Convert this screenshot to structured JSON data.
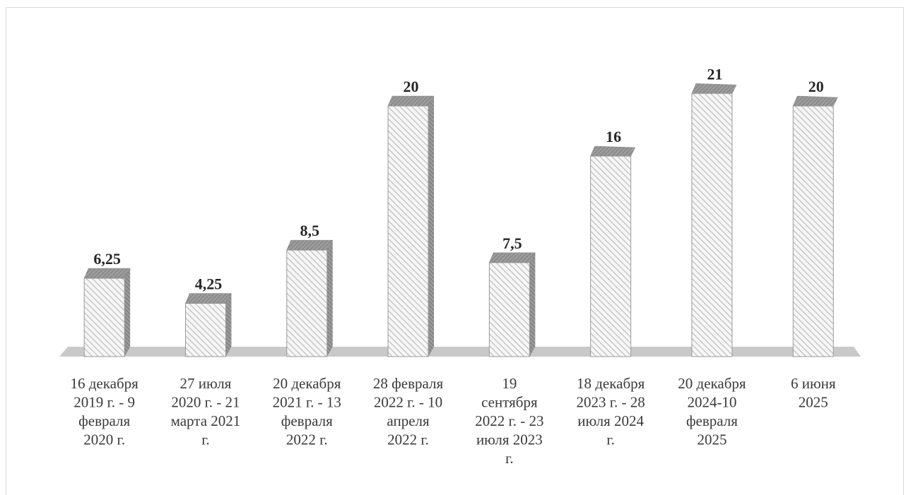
{
  "chart_data": {
    "type": "bar",
    "style": "3d-column-hatched",
    "categories": [
      [
        "16 декабря",
        "2019 г. - 9",
        "февраля",
        "2020 г."
      ],
      [
        "27 июля",
        "2020 г. - 21",
        "марта 2021",
        "г."
      ],
      [
        "20 декабря",
        "2021 г. - 13",
        "февраля",
        "2022 г."
      ],
      [
        "28 февраля",
        "2022 г. - 10",
        "апреля",
        "2022 г."
      ],
      [
        "19",
        "сентября",
        "2022 г. - 23",
        "июля 2023",
        "г."
      ],
      [
        "18 декабря",
        "2023 г. - 28",
        "июля 2024",
        "г."
      ],
      [
        "20 декабря",
        "2024-10",
        "февраля",
        "2025"
      ],
      [
        "6 июня",
        "2025"
      ]
    ],
    "values": [
      6.25,
      4.25,
      8.5,
      20,
      7.5,
      16,
      21,
      20
    ],
    "data_labels": [
      "6,25",
      "4,25",
      "8,5",
      "20",
      "7,5",
      "16",
      "21",
      "20"
    ],
    "ylim": [
      0,
      22
    ],
    "grid": false,
    "legend": "none",
    "colors": {
      "face": "#f4f4f4",
      "hatch": "#bdbdbd",
      "top": "#8c8c8c",
      "side_light": "#a8a8a8",
      "side_dark": "#3c3c3c",
      "floor": "#c8c8c8"
    }
  }
}
